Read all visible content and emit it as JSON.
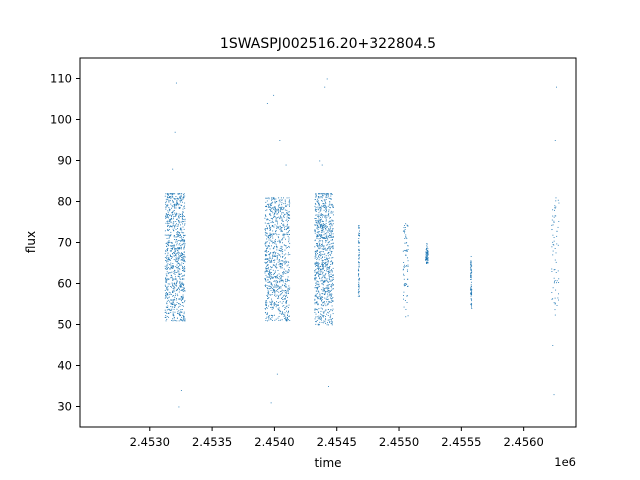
{
  "chart_data": {
    "type": "scatter",
    "title": "1SWASPJ002516.20+322804.5",
    "xlabel": "time",
    "ylabel": "flux",
    "x_offset_label": "1e6",
    "xlim": [
      2.45244,
      2.45642
    ],
    "ylim": [
      25,
      115
    ],
    "x_ticks": [
      2.453,
      2.4535,
      2.454,
      2.4545,
      2.455,
      2.4555,
      2.456
    ],
    "x_tick_labels": [
      "2.4530",
      "2.4535",
      "2.4540",
      "2.4545",
      "2.4550",
      "2.4555",
      "2.4560"
    ],
    "y_ticks": [
      30,
      40,
      50,
      60,
      70,
      80,
      90,
      100,
      110
    ],
    "y_tick_labels": [
      "30",
      "40",
      "50",
      "60",
      "70",
      "80",
      "90",
      "100",
      "110"
    ],
    "grid": false,
    "marker_color": "#1f77b4",
    "clusters": [
      {
        "x_range": [
          2.45312,
          2.45328
        ],
        "y_range": [
          51,
          82
        ],
        "y_center": 68,
        "extremes": [
          [
            2.45321,
            109
          ],
          [
            2.45323,
            30
          ],
          [
            2.4532,
            97
          ],
          [
            2.45325,
            34
          ],
          [
            2.45318,
            88
          ]
        ]
      },
      {
        "x_range": [
          2.45392,
          2.45412
        ],
        "y_range": [
          51,
          81
        ],
        "y_center": 67,
        "extremes": [
          [
            2.45394,
            104
          ],
          [
            2.45399,
            106
          ],
          [
            2.45397,
            31
          ],
          [
            2.45404,
            95
          ],
          [
            2.45409,
            89
          ],
          [
            2.45402,
            38
          ]
        ]
      },
      {
        "x_range": [
          2.45432,
          2.45447
        ],
        "y_range": [
          50,
          82
        ],
        "y_center": 68,
        "extremes": [
          [
            2.45442,
            110
          ],
          [
            2.4544,
            108
          ],
          [
            2.45438,
            89
          ],
          [
            2.45443,
            35
          ],
          [
            2.45436,
            90
          ]
        ]
      },
      {
        "x_range": [
          2.45467,
          2.45468
        ],
        "y_range": [
          57,
          75
        ],
        "y_center": 66,
        "extremes": [
          [
            2.45467,
            57
          ]
        ]
      },
      {
        "x_range": [
          2.45503,
          2.45507
        ],
        "y_range": [
          52,
          75
        ],
        "y_center": 68,
        "extremes": [
          [
            2.45505,
            52
          ]
        ]
      },
      {
        "x_range": [
          2.45521,
          2.45523
        ],
        "y_range": [
          65,
          70
        ],
        "y_center": 67,
        "extremes": []
      },
      {
        "x_range": [
          2.45557,
          2.45558
        ],
        "y_range": [
          54,
          67
        ],
        "y_center": 60,
        "extremes": []
      },
      {
        "x_range": [
          2.45622,
          2.45628
        ],
        "y_range": [
          52,
          81
        ],
        "y_center": 68,
        "extremes": [
          [
            2.45626,
            108
          ],
          [
            2.45625,
            95
          ],
          [
            2.45624,
            33
          ],
          [
            2.45623,
            45
          ]
        ]
      }
    ]
  }
}
